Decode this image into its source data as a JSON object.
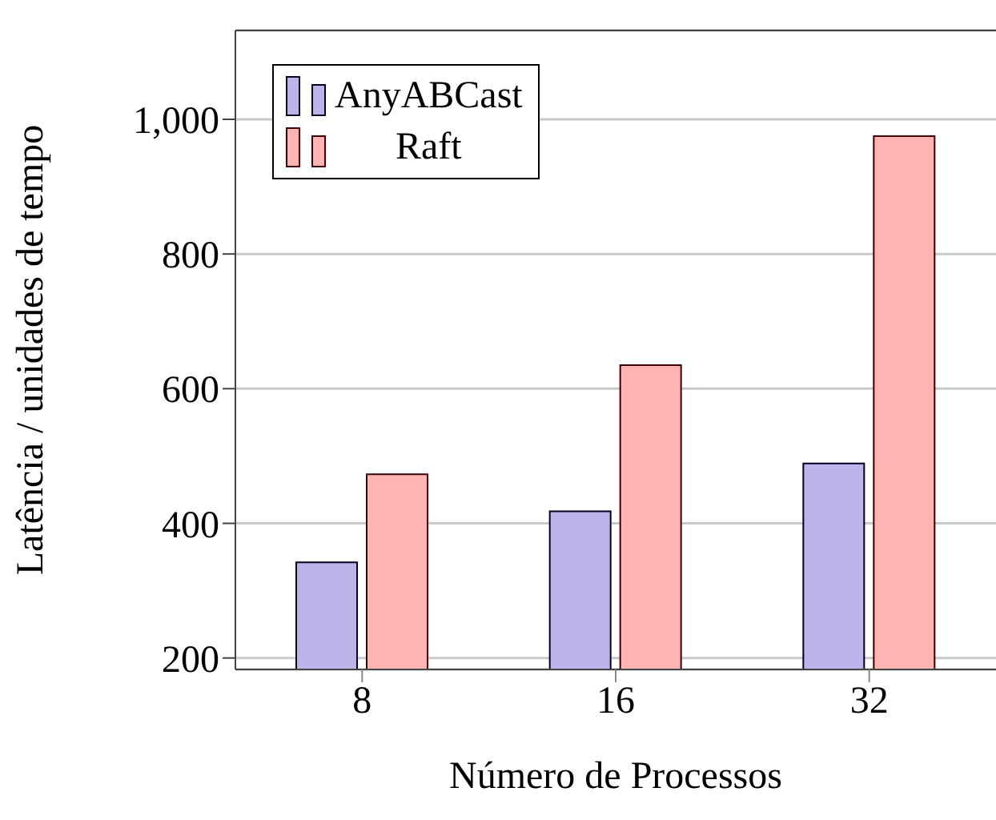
{
  "chart_data": {
    "type": "bar",
    "xlabel": "Número de Processos",
    "ylabel": "Latência / unidades de tempo",
    "categories": [
      "8",
      "16",
      "32"
    ],
    "series": [
      {
        "name": "AnyABCast",
        "color": "#bdb5ea",
        "values": [
          342,
          418,
          489
        ]
      },
      {
        "name": "Raft",
        "color": "#ffb3b3",
        "values": [
          473,
          635,
          975
        ]
      }
    ],
    "ylim": [
      183,
      1132
    ],
    "yticks": [
      200,
      400,
      600,
      800,
      {
        "value": 1000,
        "label": "1,000"
      }
    ],
    "grid": "y",
    "legend": "top left"
  }
}
